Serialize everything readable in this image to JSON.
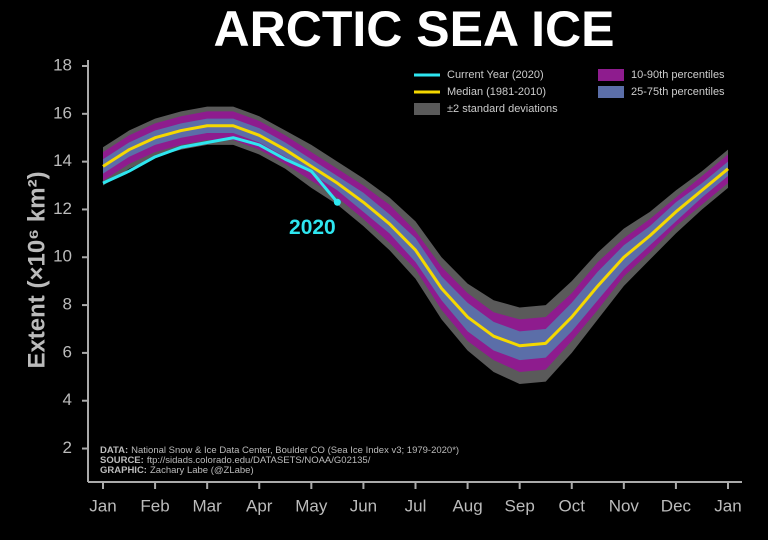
{
  "chart_data": {
    "type": "band-line",
    "title": "ARCTIC SEA ICE",
    "y_label": "Extent (×10⁶ km²)",
    "annotation": "2020",
    "source": [
      {
        "label": "DATA:",
        "text": "National Snow & Ice Data Center, Boulder CO (Sea Ice Index v3; 1979-2020*)"
      },
      {
        "label": "SOURCE:",
        "text": "ftp://sidads.colorado.edu/DATASETS/NOAA/G02135/"
      },
      {
        "label": "GRAPHIC:",
        "text": "Zachary Labe (@ZLabe)"
      }
    ],
    "categories": [
      "Jan",
      null,
      "Feb",
      null,
      "Mar",
      null,
      "Apr",
      null,
      "May",
      null,
      "Jun",
      null,
      "Jul",
      null,
      "Aug",
      null,
      "Sep",
      null,
      "Oct",
      null,
      "Nov",
      null,
      "Dec",
      null,
      "Jan"
    ],
    "ylim": [
      0.6,
      18
    ],
    "yticks": [
      2,
      4,
      6,
      8,
      10,
      12,
      14,
      16,
      18
    ],
    "grid": false,
    "bands": [
      {
        "name": "±2 standard deviations",
        "color": "#5a5a5a",
        "lower": [
          13.0,
          13.7,
          14.2,
          14.5,
          14.7,
          14.7,
          14.3,
          13.7,
          12.9,
          12.2,
          11.3,
          10.3,
          9.1,
          7.4,
          6.1,
          5.2,
          4.7,
          4.8,
          6.0,
          7.4,
          8.8,
          9.9,
          11.0,
          12.0,
          12.9
        ],
        "upper": [
          14.6,
          15.3,
          15.8,
          16.1,
          16.3,
          16.3,
          15.9,
          15.3,
          14.7,
          14.0,
          13.3,
          12.5,
          11.5,
          10.0,
          8.9,
          8.2,
          7.9,
          8.0,
          9.0,
          10.2,
          11.2,
          11.9,
          12.8,
          13.6,
          14.5
        ]
      },
      {
        "name": "10-90th percentiles",
        "color": "#8e1c8e",
        "lower": [
          13.2,
          13.9,
          14.4,
          14.7,
          14.9,
          14.9,
          14.5,
          13.9,
          13.2,
          12.5,
          11.6,
          10.6,
          9.5,
          7.8,
          6.5,
          5.7,
          5.2,
          5.3,
          6.5,
          7.8,
          9.2,
          10.2,
          11.3,
          12.2,
          13.1
        ],
        "upper": [
          14.4,
          15.1,
          15.6,
          15.9,
          16.1,
          16.1,
          15.7,
          15.1,
          14.4,
          13.7,
          13.0,
          12.2,
          11.1,
          9.6,
          8.5,
          7.7,
          7.4,
          7.5,
          8.5,
          9.8,
          10.8,
          11.6,
          12.5,
          13.4,
          14.3
        ]
      },
      {
        "name": "25-75th percentiles",
        "color": "#5b6ea8",
        "lower": [
          13.5,
          14.2,
          14.7,
          15.0,
          15.2,
          15.2,
          14.8,
          14.2,
          13.5,
          12.8,
          11.9,
          11.0,
          9.8,
          8.2,
          6.9,
          6.1,
          5.7,
          5.8,
          6.9,
          8.2,
          9.5,
          10.5,
          11.5,
          12.5,
          13.4
        ],
        "upper": [
          14.1,
          14.8,
          15.3,
          15.6,
          15.8,
          15.8,
          15.4,
          14.8,
          14.1,
          13.4,
          12.7,
          11.8,
          10.8,
          9.2,
          8.1,
          7.3,
          6.9,
          7.0,
          8.1,
          9.4,
          10.5,
          11.3,
          12.3,
          13.1,
          14.0
        ]
      }
    ],
    "series": [
      {
        "name": "Current Year (2020)",
        "color": "#2ee6f0",
        "values": [
          13.1,
          13.6,
          14.2,
          14.6,
          14.8,
          15.0,
          14.7,
          14.1,
          13.6,
          12.3,
          null,
          null,
          null,
          null,
          null,
          null,
          null,
          null,
          null,
          null,
          null,
          null,
          null,
          null,
          null
        ]
      },
      {
        "name": "Median (1981-2010)",
        "color": "#f5d800",
        "values": [
          13.8,
          14.5,
          15.0,
          15.3,
          15.5,
          15.5,
          15.1,
          14.5,
          13.8,
          13.1,
          12.3,
          11.4,
          10.3,
          8.7,
          7.5,
          6.7,
          6.3,
          6.4,
          7.5,
          8.8,
          10.0,
          10.9,
          11.9,
          12.8,
          13.7
        ]
      }
    ]
  }
}
